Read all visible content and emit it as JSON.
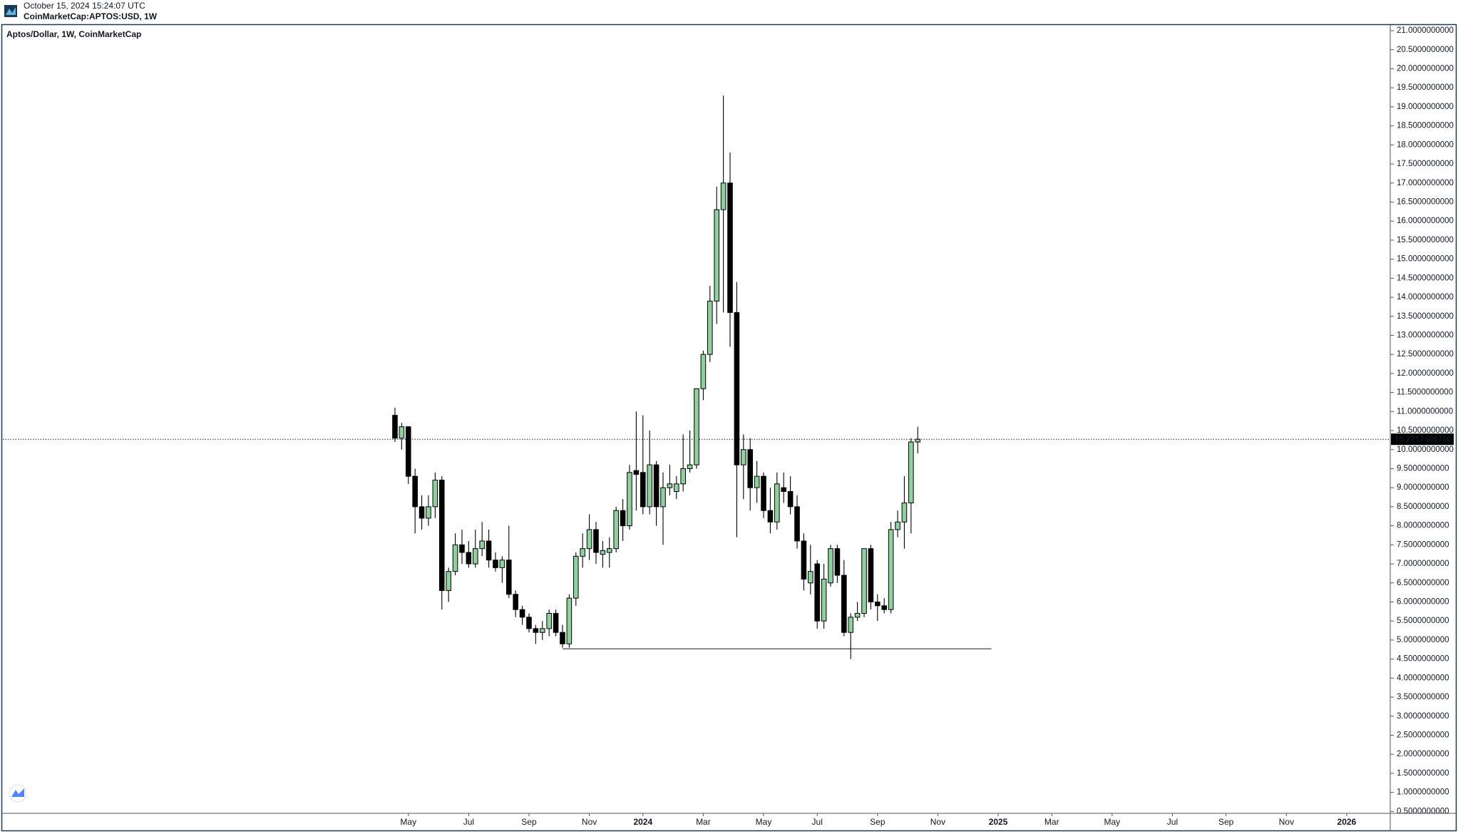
{
  "header": {
    "timestamp": "October 15, 2024 15:24:07 UTC",
    "symbol": "CoinMarketCap:APTOS:USD, 1W"
  },
  "chart_data": {
    "type": "candlestick",
    "title": "Aptos/Dollar, 1W, CoinMarketCap",
    "up_color": "#8fd19e",
    "down_color": "#000000",
    "ylim": [
      0.45,
      21.15
    ],
    "yticks": [
      {
        "value": 0.5,
        "label": "0.5000000000"
      },
      {
        "value": 1.0,
        "label": "1.0000000000"
      },
      {
        "value": 1.5,
        "label": "1.5000000000"
      },
      {
        "value": 2.0,
        "label": "2.0000000000"
      },
      {
        "value": 2.5,
        "label": "2.5000000000"
      },
      {
        "value": 3.0,
        "label": "3.0000000000"
      },
      {
        "value": 3.5,
        "label": "3.5000000000"
      },
      {
        "value": 4.0,
        "label": "4.0000000000"
      },
      {
        "value": 4.5,
        "label": "4.5000000000"
      },
      {
        "value": 5.0,
        "label": "5.0000000000"
      },
      {
        "value": 5.5,
        "label": "5.5000000000"
      },
      {
        "value": 6.0,
        "label": "6.0000000000"
      },
      {
        "value": 6.5,
        "label": "6.5000000000"
      },
      {
        "value": 7.0,
        "label": "7.0000000000"
      },
      {
        "value": 7.5,
        "label": "7.5000000000"
      },
      {
        "value": 8.0,
        "label": "8.0000000000"
      },
      {
        "value": 8.5,
        "label": "8.5000000000"
      },
      {
        "value": 9.0,
        "label": "9.0000000000"
      },
      {
        "value": 9.5,
        "label": "9.5000000000"
      },
      {
        "value": 10.0,
        "label": "10.0000000000"
      },
      {
        "value": 10.5,
        "label": "10.5000000000"
      },
      {
        "value": 11.0,
        "label": "11.0000000000"
      },
      {
        "value": 11.5,
        "label": "11.5000000000"
      },
      {
        "value": 12.0,
        "label": "12.0000000000"
      },
      {
        "value": 12.5,
        "label": "12.5000000000"
      },
      {
        "value": 13.0,
        "label": "13.0000000000"
      },
      {
        "value": 13.5,
        "label": "13.5000000000"
      },
      {
        "value": 14.0,
        "label": "14.0000000000"
      },
      {
        "value": 14.5,
        "label": "14.5000000000"
      },
      {
        "value": 15.0,
        "label": "15.0000000000"
      },
      {
        "value": 15.5,
        "label": "15.5000000000"
      },
      {
        "value": 16.0,
        "label": "16.0000000000"
      },
      {
        "value": 16.5,
        "label": "16.5000000000"
      },
      {
        "value": 17.0,
        "label": "17.0000000000"
      },
      {
        "value": 17.5,
        "label": "17.5000000000"
      },
      {
        "value": 18.0,
        "label": "18.0000000000"
      },
      {
        "value": 18.5,
        "label": "18.5000000000"
      },
      {
        "value": 19.0,
        "label": "19.0000000000"
      },
      {
        "value": 19.5,
        "label": "19.5000000000"
      },
      {
        "value": 20.0,
        "label": "20.0000000000"
      },
      {
        "value": 20.5,
        "label": "20.5000000000"
      },
      {
        "value": 21.0,
        "label": "21.0000000000"
      }
    ],
    "last_price": {
      "value": 10.27174857,
      "label": "10.2717485700"
    },
    "support_level": 4.77,
    "categories": [
      null,
      null,
      null,
      null,
      null,
      null,
      null,
      null,
      null,
      null,
      null,
      null,
      null,
      null,
      null,
      null,
      null,
      null,
      null,
      null,
      null,
      null,
      null,
      null,
      null,
      null,
      null,
      null,
      null,
      null,
      null,
      null,
      null,
      null,
      null,
      null,
      null,
      null,
      null,
      null,
      null,
      null,
      null,
      null,
      null,
      null,
      null,
      null,
      null,
      null,
      null,
      null,
      null,
      null,
      null,
      null,
      null,
      null,
      null,
      null,
      "May",
      null,
      null,
      null,
      null,
      null,
      null,
      null,
      null,
      "Jul",
      null,
      null,
      null,
      null,
      null,
      null,
      null,
      null,
      "Sep",
      null,
      null,
      null,
      null,
      null,
      null,
      null,
      null,
      "Nov",
      null,
      null,
      null,
      null,
      null,
      null,
      null,
      "2024",
      null,
      null,
      null,
      null,
      null,
      null,
      null,
      null,
      "Mar",
      null,
      null,
      null,
      null,
      null,
      null,
      null,
      null,
      "May",
      null,
      null,
      null,
      null,
      null,
      null,
      null,
      "Jul",
      null,
      null,
      null,
      null,
      null,
      null,
      null,
      null,
      "Sep",
      null,
      null,
      null,
      null,
      null,
      null,
      null,
      null,
      "Nov",
      null,
      null,
      null,
      null,
      null,
      null,
      null,
      null,
      "2025",
      null,
      null,
      null,
      null,
      null,
      null,
      null,
      "Mar",
      null,
      null,
      null,
      null,
      null,
      null,
      null,
      null,
      "May",
      null,
      null,
      null,
      null,
      null,
      null,
      null,
      null,
      "Jul",
      null,
      null,
      null,
      null,
      null,
      null,
      null,
      "Sep",
      null,
      null,
      null,
      null,
      null,
      null,
      null,
      null,
      "Nov",
      null,
      null,
      null,
      null,
      null,
      null,
      null,
      null,
      "2026",
      null,
      null,
      null,
      null,
      null,
      null
    ],
    "open": [
      null,
      null,
      null,
      null,
      null,
      null,
      null,
      null,
      null,
      null,
      null,
      null,
      null,
      null,
      null,
      null,
      null,
      null,
      null,
      null,
      null,
      null,
      null,
      null,
      null,
      null,
      null,
      null,
      null,
      null,
      null,
      null,
      null,
      null,
      null,
      null,
      null,
      null,
      null,
      null,
      null,
      null,
      null,
      null,
      null,
      null,
      null,
      null,
      null,
      null,
      null,
      null,
      null,
      null,
      null,
      null,
      null,
      null,
      10.9,
      10.3,
      10.6,
      9.3,
      8.5,
      8.2,
      8.5,
      9.2,
      6.3,
      6.8,
      7.5,
      7.3,
      7.0,
      7.4,
      7.6,
      7.1,
      6.9,
      7.1,
      6.2,
      5.8,
      5.6,
      5.3,
      5.2,
      5.3,
      5.7,
      5.2,
      4.9,
      6.1,
      7.2,
      7.4,
      7.9,
      7.25,
      7.3,
      7.4,
      8.4,
      8.0,
      9.45,
      9.4,
      8.5,
      9.6,
      8.5,
      9.0,
      8.9,
      9.1,
      9.5,
      9.6,
      11.6,
      12.5,
      13.9,
      16.3,
      17.0,
      13.6,
      9.6,
      10.0,
      9.0,
      9.3,
      8.4,
      8.1,
      9.0,
      8.9,
      8.5,
      7.6,
      6.5,
      7.0,
      5.5,
      6.5,
      7.4,
      6.7,
      5.2,
      5.6,
      5.7,
      7.4,
      6.0,
      5.9,
      5.8,
      7.9,
      8.1,
      8.6,
      10.2,
      null,
      null,
      null,
      null,
      null,
      null,
      null,
      null,
      null,
      null,
      null,
      null,
      null,
      null,
      null,
      null,
      null,
      null,
      null,
      null,
      null,
      null,
      null,
      null,
      null,
      null,
      null,
      null,
      null,
      null,
      null,
      null,
      null,
      null,
      null,
      null,
      null,
      null,
      null,
      null,
      null,
      null,
      null,
      null,
      null,
      null,
      null,
      null,
      null,
      null,
      null,
      null,
      null,
      null,
      null,
      null,
      null,
      null,
      null,
      null,
      null,
      null,
      null,
      null,
      null,
      null,
      null,
      null,
      null,
      null
    ],
    "high": [
      null,
      null,
      null,
      null,
      null,
      null,
      null,
      null,
      null,
      null,
      null,
      null,
      null,
      null,
      null,
      null,
      null,
      null,
      null,
      null,
      null,
      null,
      null,
      null,
      null,
      null,
      null,
      null,
      null,
      null,
      null,
      null,
      null,
      null,
      null,
      null,
      null,
      null,
      null,
      null,
      null,
      null,
      null,
      null,
      null,
      null,
      null,
      null,
      null,
      null,
      null,
      null,
      null,
      null,
      null,
      null,
      null,
      null,
      11.1,
      10.7,
      10.6,
      9.5,
      8.8,
      8.8,
      9.4,
      9.3,
      6.9,
      7.8,
      7.9,
      7.6,
      7.9,
      8.1,
      7.9,
      7.3,
      7.2,
      8.0,
      6.3,
      5.9,
      5.7,
      5.4,
      5.5,
      5.8,
      5.8,
      5.4,
      6.2,
      7.3,
      7.8,
      8.3,
      8.1,
      7.6,
      7.7,
      8.5,
      8.7,
      9.6,
      11.0,
      10.9,
      10.5,
      9.7,
      9.4,
      9.6,
      9.3,
      10.4,
      10.5,
      11.6,
      12.6,
      14.3,
      16.9,
      19.3,
      17.8,
      14.4,
      10.4,
      10.3,
      9.7,
      9.4,
      9.0,
      9.4,
      9.4,
      9.3,
      8.8,
      7.8,
      7.5,
      7.1,
      7.0,
      7.5,
      7.5,
      7.1,
      5.7,
      6.0,
      7.4,
      7.5,
      6.2,
      6.1,
      8.1,
      8.4,
      9.3,
      10.3,
      10.6,
      null,
      null,
      null,
      null,
      null,
      null,
      null,
      null,
      null,
      null,
      null,
      null,
      null,
      null,
      null,
      null,
      null,
      null,
      null,
      null,
      null,
      null,
      null,
      null,
      null,
      null,
      null,
      null,
      null,
      null,
      null,
      null,
      null,
      null,
      null,
      null,
      null,
      null,
      null,
      null,
      null,
      null,
      null,
      null,
      null,
      null,
      null,
      null,
      null,
      null,
      null,
      null,
      null,
      null,
      null,
      null,
      null,
      null,
      null,
      null,
      null,
      null,
      null,
      null,
      null,
      null,
      null,
      null,
      null,
      null
    ],
    "low": [
      null,
      null,
      null,
      null,
      null,
      null,
      null,
      null,
      null,
      null,
      null,
      null,
      null,
      null,
      null,
      null,
      null,
      null,
      null,
      null,
      null,
      null,
      null,
      null,
      null,
      null,
      null,
      null,
      null,
      null,
      null,
      null,
      null,
      null,
      null,
      null,
      null,
      null,
      null,
      null,
      null,
      null,
      null,
      null,
      null,
      null,
      null,
      null,
      null,
      null,
      null,
      null,
      null,
      null,
      null,
      null,
      null,
      null,
      10.2,
      10.0,
      9.1,
      7.8,
      7.9,
      8.0,
      8.2,
      5.8,
      6.0,
      6.7,
      7.0,
      6.9,
      6.9,
      7.2,
      6.9,
      6.8,
      6.5,
      6.1,
      5.6,
      5.4,
      5.2,
      4.9,
      5.0,
      5.1,
      5.1,
      4.8,
      4.8,
      5.9,
      6.9,
      7.1,
      7.0,
      6.9,
      6.9,
      7.3,
      7.6,
      7.9,
      8.4,
      8.3,
      8.3,
      8.0,
      7.5,
      8.8,
      8.7,
      8.9,
      9.4,
      9.5,
      11.3,
      12.3,
      13.3,
      13.6,
      12.7,
      7.7,
      8.7,
      8.4,
      8.6,
      8.2,
      7.8,
      7.9,
      8.6,
      8.3,
      7.4,
      6.3,
      6.2,
      5.3,
      5.3,
      6.4,
      6.5,
      5.1,
      4.5,
      5.5,
      5.6,
      5.8,
      5.5,
      5.7,
      5.7,
      7.7,
      7.4,
      7.8,
      9.9,
      null,
      null,
      null,
      null,
      null,
      null,
      null,
      null,
      null,
      null,
      null,
      null,
      null,
      null,
      null,
      null,
      null,
      null,
      null,
      null,
      null,
      null,
      null,
      null,
      null,
      null,
      null,
      null,
      null,
      null,
      null,
      null,
      null,
      null,
      null,
      null,
      null,
      null,
      null,
      null,
      null,
      null,
      null,
      null,
      null,
      null,
      null,
      null,
      null,
      null,
      null,
      null,
      null,
      null,
      null,
      null,
      null,
      null,
      null,
      null,
      null,
      null,
      null,
      null,
      null,
      null,
      null,
      null,
      null,
      null
    ],
    "close": [
      null,
      null,
      null,
      null,
      null,
      null,
      null,
      null,
      null,
      null,
      null,
      null,
      null,
      null,
      null,
      null,
      null,
      null,
      null,
      null,
      null,
      null,
      null,
      null,
      null,
      null,
      null,
      null,
      null,
      null,
      null,
      null,
      null,
      null,
      null,
      null,
      null,
      null,
      null,
      null,
      null,
      null,
      null,
      null,
      null,
      null,
      null,
      null,
      null,
      null,
      null,
      null,
      null,
      null,
      null,
      null,
      null,
      null,
      10.3,
      10.6,
      9.3,
      8.5,
      8.2,
      8.5,
      9.2,
      6.3,
      6.8,
      7.5,
      7.3,
      7.0,
      7.4,
      7.6,
      7.1,
      6.9,
      7.1,
      6.2,
      5.8,
      5.6,
      5.3,
      5.2,
      5.3,
      5.7,
      5.2,
      4.9,
      6.1,
      7.2,
      7.4,
      7.9,
      7.3,
      7.35,
      7.4,
      8.4,
      8.0,
      9.4,
      9.35,
      8.5,
      9.6,
      8.5,
      9.0,
      9.1,
      9.1,
      9.5,
      9.6,
      11.6,
      12.5,
      13.9,
      16.3,
      17.0,
      13.6,
      9.6,
      10.0,
      9.0,
      9.3,
      8.4,
      8.1,
      9.1,
      8.9,
      8.5,
      7.6,
      6.6,
      6.8,
      5.5,
      6.6,
      7.4,
      6.7,
      5.2,
      5.6,
      5.7,
      7.4,
      6.0,
      5.9,
      5.8,
      7.9,
      8.1,
      8.6,
      10.2,
      10.27174857,
      null,
      null,
      null,
      null,
      null,
      null,
      null,
      null,
      null,
      null,
      null,
      null,
      null,
      null,
      null,
      null,
      null,
      null,
      null,
      null,
      null,
      null,
      null,
      null,
      null,
      null,
      null,
      null,
      null,
      null,
      null,
      null,
      null,
      null,
      null,
      null,
      null,
      null,
      null,
      null,
      null,
      null,
      null,
      null,
      null,
      null,
      null,
      null,
      null,
      null,
      null,
      null,
      null,
      null,
      null,
      null,
      null,
      null,
      null,
      null,
      null,
      null,
      null,
      null,
      null,
      null,
      null,
      null,
      null,
      null
    ]
  }
}
